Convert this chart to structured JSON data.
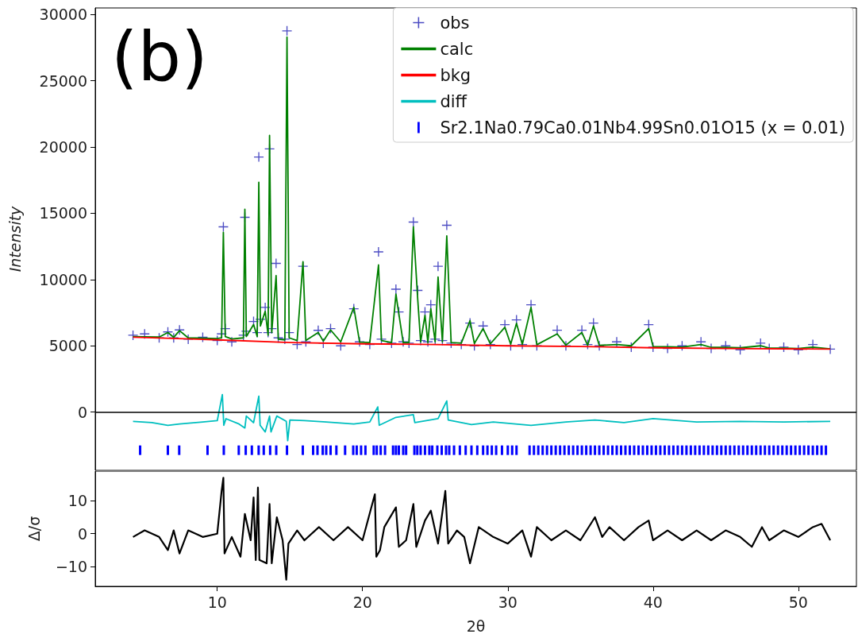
{
  "chart_data": [
    {
      "type": "scatter",
      "annotations": [
        "(b)"
      ],
      "ylabel": "Intensity",
      "xlim": [
        1.6,
        54
      ],
      "xticks": [
        10,
        20,
        30,
        40,
        50
      ],
      "ylim": [
        -4400,
        30500
      ],
      "yticks": [
        0,
        5000,
        10000,
        15000,
        20000,
        25000,
        30000
      ],
      "tick_labels": "y",
      "legend": "top right",
      "ref_lines": [
        {
          "axis": "y",
          "value": 0,
          "color": "#000000"
        }
      ],
      "x": [
        4.2,
        5,
        6,
        6.6,
        7,
        7.4,
        8,
        9,
        10,
        10.3,
        10.42,
        10.55,
        11,
        11.8,
        11.9,
        12.0,
        12.5,
        12.75,
        12.86,
        12.97,
        13.3,
        13.5,
        13.6,
        13.75,
        14.05,
        14.2,
        14.65,
        14.8,
        14.95,
        15.5,
        15.9,
        16.1,
        16.95,
        17.3,
        17.8,
        18.5,
        19.4,
        19.8,
        20.5,
        21.1,
        21.3,
        22.0,
        22.3,
        22.5,
        22.8,
        23.2,
        23.5,
        23.8,
        24.0,
        24.3,
        24.5,
        24.7,
        25.0,
        25.2,
        25.5,
        25.8,
        26.1,
        26.8,
        27.4,
        27.7,
        28.3,
        28.8,
        29.8,
        30.2,
        30.6,
        31.0,
        31.6,
        32.0,
        33.4,
        34.0,
        35.1,
        35.5,
        35.9,
        36.3,
        37.5,
        38.5,
        39.7,
        40.0,
        41,
        42,
        43.3,
        44,
        45,
        46,
        47.4,
        48,
        49,
        50,
        51,
        52.2
      ],
      "series": [
        {
          "name": "obs",
          "marker": "cross",
          "color": "#1f1fb4",
          "values": [
            5800,
            5900,
            5600,
            6050,
            5600,
            6200,
            5500,
            5650,
            5400,
            5900,
            13980,
            6300,
            5300,
            5800,
            14700,
            6100,
            6840,
            6000,
            19250,
            7000,
            7900,
            6000,
            19860,
            6300,
            11220,
            5600,
            5500,
            28770,
            6000,
            5100,
            11000,
            5300,
            6170,
            5200,
            6300,
            5000,
            7800,
            5300,
            5100,
            12090,
            5500,
            5200,
            9270,
            7560,
            5300,
            5200,
            14340,
            9180,
            5400,
            7560,
            5300,
            8100,
            5500,
            11000,
            5400,
            14100,
            5200,
            5100,
            6720,
            5000,
            6500,
            5100,
            6600,
            5000,
            6960,
            5100,
            8100,
            5000,
            6180,
            5000,
            6180,
            5100,
            6720,
            5000,
            5300,
            4900,
            6600,
            4900,
            4800,
            5000,
            5300,
            4800,
            5000,
            4700,
            5200,
            4800,
            4900,
            4700,
            5100,
            4750
          ]
        },
        {
          "name": "calc",
          "type": "line",
          "color": "#008000",
          "values": [
            5700,
            5680,
            5660,
            6000,
            5640,
            6150,
            5600,
            5570,
            5540,
            5600,
            13560,
            5700,
            5520,
            5600,
            15300,
            5700,
            6600,
            5700,
            17340,
            6500,
            7600,
            5800,
            20880,
            6000,
            10300,
            5500,
            5450,
            28300,
            5600,
            5400,
            11340,
            5400,
            6000,
            5350,
            6200,
            5300,
            7900,
            5280,
            5250,
            11100,
            5400,
            5250,
            8900,
            7400,
            5250,
            5250,
            13980,
            8500,
            5300,
            7300,
            5250,
            7800,
            5300,
            10200,
            5300,
            13300,
            5250,
            5200,
            6900,
            5180,
            6300,
            5150,
            6400,
            5120,
            6700,
            5100,
            7900,
            5080,
            5900,
            5050,
            6000,
            5040,
            6500,
            5030,
            5100,
            5000,
            6300,
            4950,
            4930,
            4900,
            5100,
            4880,
            4880,
            4850,
            5000,
            4830,
            4820,
            4800,
            4900,
            4770
          ]
        },
        {
          "name": "bkg",
          "type": "line",
          "color": "#ff0000",
          "x": [
            4.2,
            10,
            15,
            20,
            25,
            30,
            35,
            40,
            45,
            52.2
          ],
          "values": [
            5650,
            5450,
            5250,
            5150,
            5100,
            5000,
            4950,
            4850,
            4800,
            4750
          ]
        },
        {
          "name": "diff",
          "type": "line",
          "color": "#00bfbf",
          "x": [
            4.2,
            5.5,
            6.6,
            7.4,
            9,
            10,
            10.35,
            10.45,
            10.6,
            11.5,
            11.9,
            12.0,
            12.5,
            12.86,
            12.95,
            13.3,
            13.6,
            13.7,
            14.1,
            14.75,
            14.85,
            15.0,
            16,
            17.5,
            19.4,
            20.5,
            21.05,
            21.15,
            22.3,
            23.5,
            23.6,
            25.2,
            25.8,
            25.9,
            27.5,
            29,
            31.6,
            34,
            36,
            38,
            40,
            43,
            46,
            49,
            52.2
          ],
          "values": [
            -700,
            -800,
            -1000,
            -900,
            -750,
            -650,
            1320,
            -1000,
            -500,
            -900,
            -1200,
            -300,
            -800,
            1200,
            -1000,
            -1500,
            -300,
            -1500,
            -300,
            -700,
            -2160,
            -600,
            -650,
            -750,
            -900,
            -750,
            390,
            -1000,
            -400,
            -200,
            -800,
            -500,
            840,
            -600,
            -950,
            -750,
            -1000,
            -750,
            -600,
            -800,
            -500,
            -750,
            -700,
            -750,
            -700
          ]
        },
        {
          "name": "Sr2.1Na0.79Ca0.01Nb4.99Sn0.01O15 (x = 0.01)",
          "type": "bar",
          "color": "#0000ff",
          "x": [
            4.69,
            6.6,
            7.38,
            9.33,
            10.45,
            11.48,
            11.96,
            12.38,
            12.85,
            13.2,
            13.64,
            14.06,
            14.8,
            15.89,
            16.6,
            16.9,
            17.26,
            17.5,
            17.8,
            18.2,
            18.8,
            19.36,
            19.6,
            19.9,
            20.2,
            20.77,
            20.98,
            21.25,
            21.55,
            22.1,
            22.3,
            22.5,
            22.8,
            23.0,
            23.57,
            23.77,
            24.0,
            24.3,
            24.6,
            24.8,
            25.15,
            25.45,
            25.75,
            25.97,
            26.3,
            26.7,
            27.1,
            27.5,
            27.9,
            28.3,
            28.6,
            28.9,
            29.2,
            29.6,
            30.0,
            30.3,
            30.6,
            31.5,
            31.8,
            32.1,
            32.4,
            32.7,
            33.0,
            33.3,
            33.6,
            33.9,
            34.2,
            34.5,
            34.8,
            35.1,
            35.4,
            35.7,
            36.0,
            36.3,
            36.6,
            36.9,
            37.2,
            37.5,
            37.8,
            38.1,
            38.4,
            38.7,
            39.0,
            39.3,
            39.6,
            39.9,
            40.2,
            40.5,
            40.8,
            41.1,
            41.4,
            41.7,
            42.0,
            42.3,
            42.6,
            42.9,
            43.2,
            43.5,
            43.8,
            44.1,
            44.4,
            44.7,
            45.0,
            45.3,
            45.6,
            45.9,
            46.2,
            46.5,
            46.8,
            47.1,
            47.4,
            47.7,
            48.0,
            48.3,
            48.6,
            48.9,
            49.2,
            49.5,
            49.8,
            50.1,
            50.4,
            50.7,
            51.0,
            51.3,
            51.6,
            51.9
          ],
          "base": [
            -3240,
            -3240,
            -3240,
            -3240,
            -3240,
            -3240,
            -3240,
            -3240,
            -3240,
            -3240,
            -3240,
            -3240,
            -3240,
            -3240,
            -3240,
            -3240,
            -3240,
            -3240,
            -3240,
            -3240,
            -3240,
            -3240,
            -3240,
            -3240,
            -3240,
            -3240,
            -3240,
            -3240,
            -3240,
            -3240,
            -3240,
            -3240,
            -3240,
            -3240,
            -3240,
            -3240,
            -3240,
            -3240,
            -3240,
            -3240,
            -3240,
            -3240,
            -3240,
            -3240,
            -3240,
            -3240,
            -3240,
            -3240,
            -3240,
            -3240,
            -3240,
            -3240,
            -3240,
            -3240,
            -3240,
            -3240,
            -3240,
            -3240,
            -3240,
            -3240,
            -3240,
            -3240,
            -3240,
            -3240,
            -3240,
            -3240,
            -3240,
            -3240,
            -3240,
            -3240,
            -3240,
            -3240,
            -3240,
            -3240,
            -3240,
            -3240,
            -3240,
            -3240,
            -3240,
            -3240,
            -3240,
            -3240,
            -3240,
            -3240,
            -3240,
            -3240,
            -3240,
            -3240,
            -3240,
            -3240,
            -3240,
            -3240,
            -3240,
            -3240,
            -3240,
            -3240,
            -3240,
            -3240,
            -3240,
            -3240,
            -3240,
            -3240,
            -3240,
            -3240,
            -3240,
            -3240,
            -3240,
            -3240,
            -3240,
            -3240,
            -3240,
            -3240,
            -3240,
            -3240,
            -3240,
            -3240,
            -3240,
            -3240,
            -3240,
            -3240,
            -3240,
            -3240,
            -3240,
            -3240,
            -3240,
            -3240
          ],
          "values": [
            720,
            720,
            720,
            720,
            720,
            720,
            720,
            720,
            720,
            720,
            720,
            720,
            720,
            720,
            720,
            720,
            720,
            720,
            720,
            720,
            720,
            720,
            720,
            720,
            720,
            720,
            720,
            720,
            720,
            720,
            720,
            720,
            720,
            720,
            720,
            720,
            720,
            720,
            720,
            720,
            720,
            720,
            720,
            720,
            720,
            720,
            720,
            720,
            720,
            720,
            720,
            720,
            720,
            720,
            720,
            720,
            720,
            720,
            720,
            720,
            720,
            720,
            720,
            720,
            720,
            720,
            720,
            720,
            720,
            720,
            720,
            720,
            720,
            720,
            720,
            720,
            720,
            720,
            720,
            720,
            720,
            720,
            720,
            720,
            720,
            720,
            720,
            720,
            720,
            720,
            720,
            720,
            720,
            720,
            720,
            720,
            720,
            720,
            720,
            720,
            720,
            720,
            720,
            720,
            720,
            720,
            720,
            720,
            720,
            720,
            720,
            720,
            720,
            720,
            720,
            720,
            720,
            720,
            720,
            720,
            720,
            720,
            720,
            720,
            720,
            720
          ]
        }
      ]
    },
    {
      "type": "line",
      "xlabel": "2θ",
      "ylabel": "Δ/σ",
      "xlim": [
        1.6,
        54
      ],
      "xticks": [
        10,
        20,
        30,
        40,
        50
      ],
      "ylim": [
        -16,
        19
      ],
      "yticks": [
        -10,
        0,
        10
      ],
      "x": [
        4.2,
        5,
        6,
        6.6,
        7,
        7.4,
        8,
        9,
        10,
        10.3,
        10.42,
        10.5,
        11,
        11.6,
        11.9,
        12.3,
        12.5,
        12.65,
        12.8,
        12.9,
        13.4,
        13.6,
        13.75,
        14.1,
        14.5,
        14.75,
        14.9,
        15.5,
        16,
        17,
        18,
        19,
        20,
        20.85,
        20.95,
        21.2,
        21.5,
        22.3,
        22.5,
        23,
        23.5,
        23.7,
        24.3,
        24.7,
        25.2,
        25.7,
        25.9,
        26.5,
        27,
        27.4,
        28,
        29,
        30,
        31,
        31.6,
        32,
        33,
        34,
        35,
        36,
        36.5,
        37,
        38,
        39,
        39.7,
        40,
        41,
        42,
        43,
        44,
        45,
        46,
        46.8,
        47.5,
        48,
        49,
        50,
        51,
        51.6,
        52.2
      ],
      "series": [
        {
          "color": "#000000",
          "values": [
            -1,
            1,
            -1,
            -5,
            1,
            -6,
            1,
            -1,
            0,
            13,
            17,
            -6,
            -1,
            -7,
            6,
            -2,
            11,
            -8,
            14,
            -8,
            -9,
            9,
            -9,
            5,
            -2,
            -14,
            -3,
            1,
            -2,
            2,
            -2,
            2,
            -2,
            12,
            -7,
            -5,
            2,
            8,
            -4,
            -2,
            9,
            -4,
            4,
            7,
            -3,
            13,
            -3,
            1,
            -1,
            -9,
            2,
            -1,
            -3,
            1,
            -7,
            2,
            -2,
            1,
            -2,
            5,
            -1,
            2,
            -2,
            2,
            4,
            -2,
            1,
            -2,
            1,
            -2,
            1,
            -1,
            -4,
            2,
            -2,
            1,
            -1,
            2,
            3,
            -2
          ]
        }
      ]
    }
  ]
}
